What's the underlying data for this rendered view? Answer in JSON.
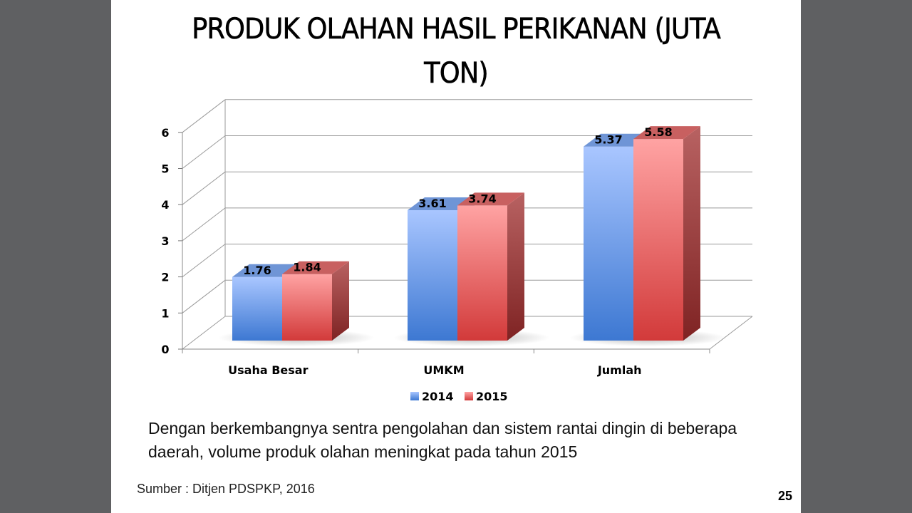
{
  "slide": {
    "title_line1": "PRODUK OLAHAN HASIL PERIKANAN (JUTA",
    "title_line2": "TON)",
    "caption_line1": "Dengan berkembangnya sentra pengolahan dan sistem rantai dingin di beberapa",
    "caption_line2": "daerah, volume produk olahan meningkat pada tahun 2015",
    "source": "Sumber : Ditjen PDSPKP, 2016",
    "page_number": "25"
  },
  "chart_data": {
    "type": "bar",
    "style": "3d-clustered",
    "categories": [
      "Usaha Besar",
      "UMKM",
      "Jumlah"
    ],
    "series": [
      {
        "name": "2014",
        "values": [
          1.76,
          3.61,
          5.37
        ],
        "color": "#4f86d8"
      },
      {
        "name": "2015",
        "values": [
          1.84,
          3.74,
          5.58
        ],
        "color": "#de4848"
      }
    ],
    "data_labels": [
      [
        "1.76",
        "3.61",
        "5.37"
      ],
      [
        "1.84",
        "3.74",
        "5.58"
      ]
    ],
    "y_ticks": [
      "0",
      "1",
      "2",
      "3",
      "4",
      "5",
      "6"
    ],
    "ylim": [
      0,
      6
    ],
    "grid": true,
    "legend_position": "bottom"
  }
}
